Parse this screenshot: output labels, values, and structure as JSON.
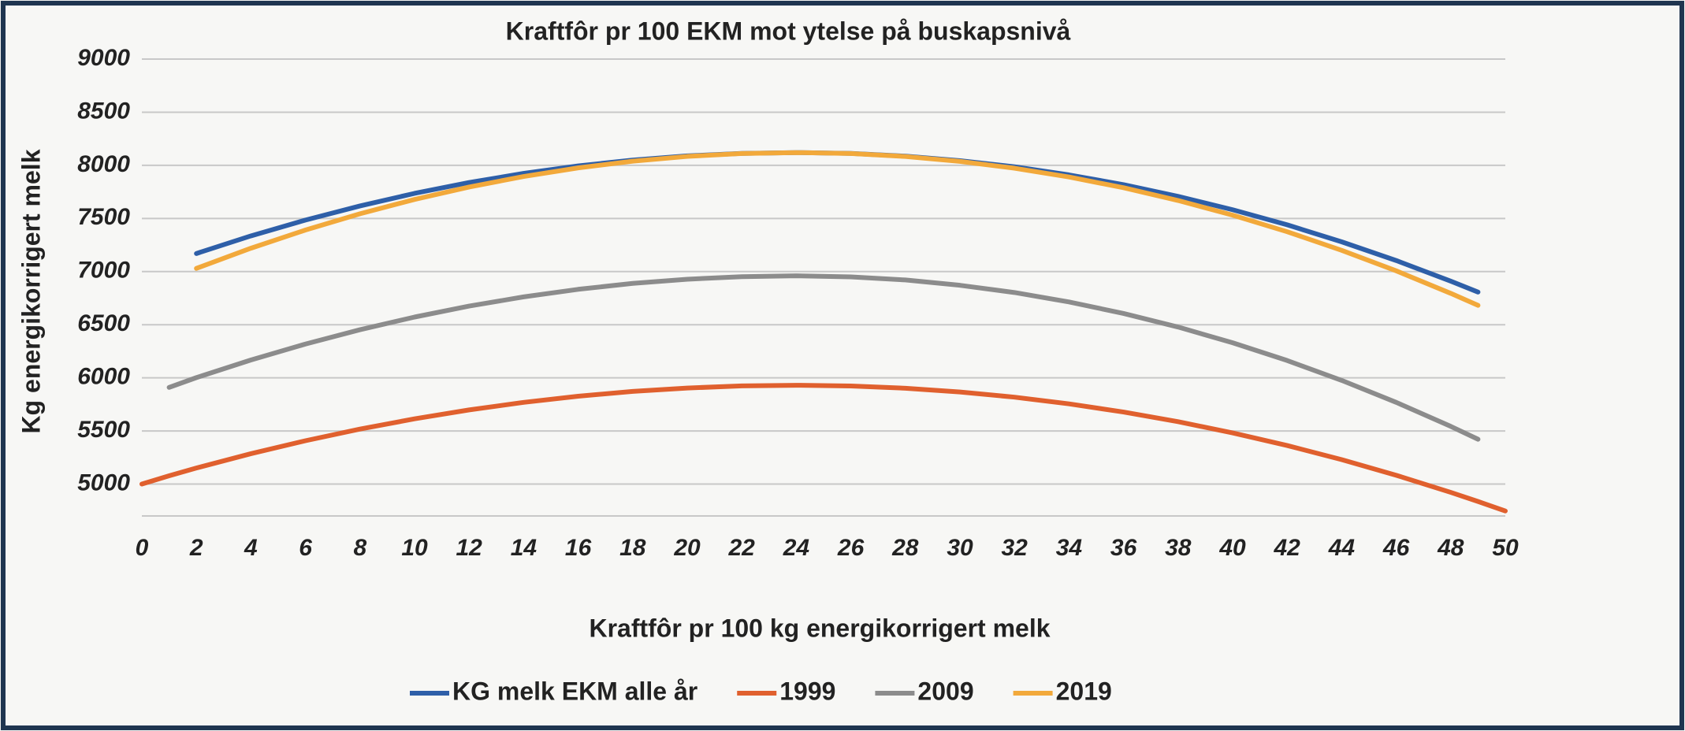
{
  "chart_data": {
    "type": "line",
    "title": "Kraftfôr pr 100 EKM mot ytelse på buskapsnivå",
    "x_label": "Kraftfôr pr 100 kg energikorrigert melk",
    "y_label": "Kg energikorrigert melk",
    "x": [
      0,
      1,
      2,
      4,
      6,
      8,
      10,
      12,
      14,
      16,
      18,
      20,
      22,
      24,
      26,
      28,
      30,
      32,
      34,
      36,
      38,
      40,
      42,
      44,
      46,
      48,
      49,
      50
    ],
    "series": [
      {
        "name": "KG melk EKM alle år",
        "color": "#2e5fa8",
        "values": [
          null,
          null,
          7170,
          7336,
          7485,
          7618,
          7736,
          7838,
          7924,
          7995,
          8049,
          8089,
          8112,
          8120,
          8112,
          8086,
          8044,
          7986,
          7910,
          7818,
          7708,
          7582,
          7440,
          7280,
          7104,
          6910,
          6807,
          null
        ]
      },
      {
        "name": "1999",
        "color": "#e0602e",
        "values": [
          5000,
          5078,
          5151,
          5286,
          5408,
          5518,
          5614,
          5698,
          5769,
          5827,
          5872,
          5904,
          5924,
          5930,
          5923,
          5902,
          5867,
          5818,
          5755,
          5678,
          5587,
          5482,
          5363,
          5230,
          5083,
          4922,
          4836,
          4747
        ]
      },
      {
        "name": "2009",
        "color": "#8c8c8c",
        "values": [
          null,
          5910,
          6002,
          6168,
          6318,
          6453,
          6572,
          6675,
          6762,
          6833,
          6889,
          6928,
          6952,
          6960,
          6950,
          6921,
          6871,
          6803,
          6714,
          6606,
          6478,
          6330,
          6163,
          5976,
          5769,
          5543,
          5422,
          null
        ]
      },
      {
        "name": "2019",
        "color": "#f2a93b",
        "values": [
          null,
          null,
          7030,
          7220,
          7391,
          7544,
          7679,
          7796,
          7895,
          7976,
          8039,
          8084,
          8111,
          8120,
          8111,
          8083,
          8037,
          7973,
          7890,
          7789,
          7669,
          7531,
          7375,
          7200,
          7007,
          6795,
          6682,
          null
        ]
      }
    ],
    "xlim": [
      0,
      50
    ],
    "xticks": [
      0,
      2,
      4,
      6,
      8,
      10,
      12,
      14,
      16,
      18,
      20,
      22,
      24,
      26,
      28,
      30,
      32,
      34,
      36,
      38,
      40,
      42,
      44,
      46,
      48,
      50
    ],
    "ylim": [
      4700,
      9000
    ],
    "yticks": [
      5000,
      5500,
      6000,
      6500,
      7000,
      7500,
      8000,
      8500,
      9000
    ],
    "grid": true,
    "legend": "bottom"
  }
}
